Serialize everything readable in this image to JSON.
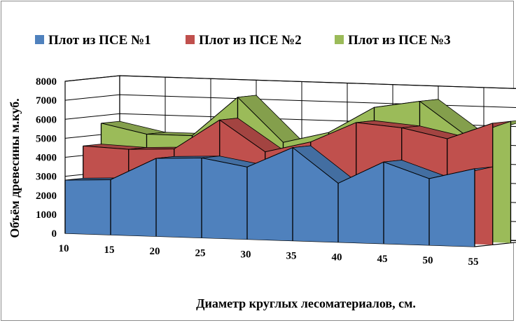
{
  "chart_data": {
    "type": "area",
    "subtype": "3d-stacked-area",
    "categories": [
      "10",
      "15",
      "20",
      "25",
      "30",
      "35",
      "40",
      "45",
      "50",
      "55"
    ],
    "series": [
      {
        "name": "Плот из ПСЕ №1",
        "color": "#4f81bd",
        "values": [
          2800,
          2900,
          4100,
          4200,
          3800,
          4900,
          3100,
          4300,
          3500,
          4100
        ]
      },
      {
        "name": "Плот из ПСЕ №2",
        "color": "#c0504d",
        "values": [
          1700,
          1500,
          400,
          1900,
          700,
          200,
          3100,
          1700,
          2000,
          2300
        ]
      },
      {
        "name": "Плот из ПСЕ №3",
        "color": "#9bbb59",
        "values": [
          1100,
          700,
          600,
          1100,
          400,
          400,
          700,
          1300,
          100,
          0
        ]
      }
    ],
    "ylim": [
      0,
      8000
    ],
    "yticks": [
      "8000",
      "7000",
      "6000",
      "5000",
      "4000",
      "3000",
      "2000",
      "1000",
      "0"
    ],
    "ylabel": "Объём древесины м.куб.",
    "xlabel": "Диаметр круглых лесоматериалов, см.",
    "grid": true,
    "legend_position": "top"
  }
}
